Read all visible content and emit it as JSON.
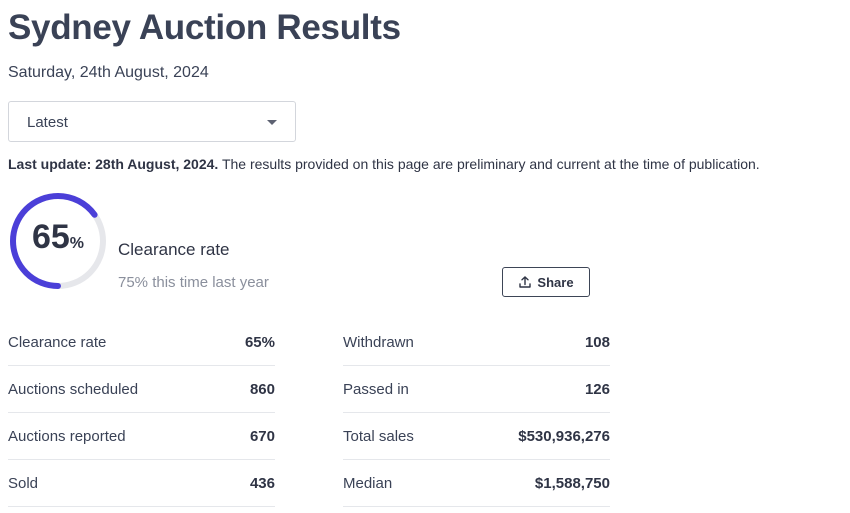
{
  "header": {
    "title": "Sydney Auction Results",
    "date": "Saturday, 24th August, 2024"
  },
  "select": {
    "value": "Latest"
  },
  "update": {
    "label": "Last update: 28th August, 2024.",
    "text": " The results provided on this page are preliminary and current at the time of publication."
  },
  "summary": {
    "rate_value": "65",
    "rate_symbol": "%",
    "rate_fraction": 0.65,
    "label": "Clearance rate",
    "last_year": "75% this time last year",
    "ring_color": "#4b3fd8",
    "ring_track_color": "#e6e7eb"
  },
  "share": {
    "label": "Share",
    "icon": "upload-icon"
  },
  "stats_left": [
    {
      "label": "Clearance rate",
      "value": "65%"
    },
    {
      "label": "Auctions scheduled",
      "value": "860"
    },
    {
      "label": "Auctions reported",
      "value": "670"
    },
    {
      "label": "Sold",
      "value": "436"
    }
  ],
  "stats_right": [
    {
      "label": "Withdrawn",
      "value": "108"
    },
    {
      "label": "Passed in",
      "value": "126"
    },
    {
      "label": "Total sales",
      "value": "$530,936,276"
    },
    {
      "label": "Median",
      "value": "$1,588,750"
    }
  ]
}
